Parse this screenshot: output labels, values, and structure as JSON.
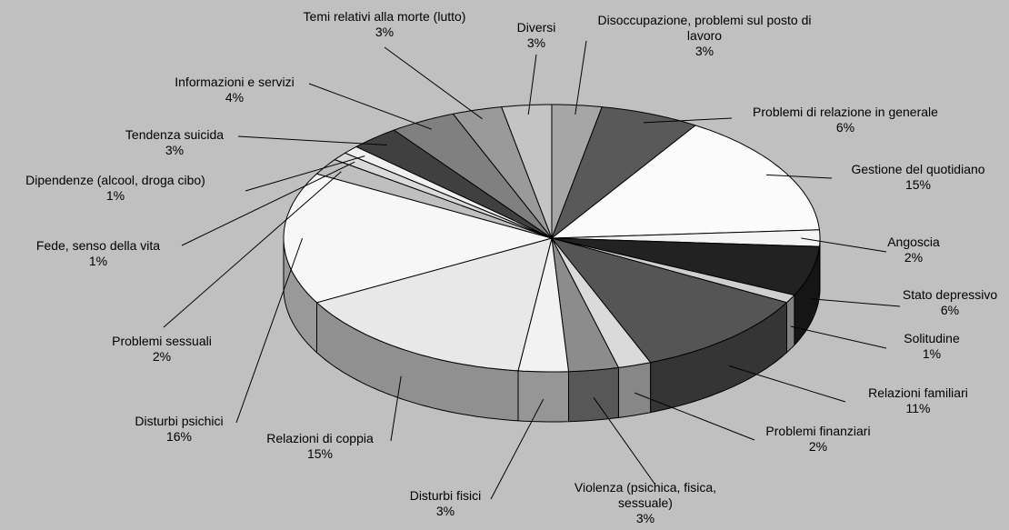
{
  "chart_data": {
    "type": "pie",
    "categories": [
      "Disoccupazione, problemi sul posto di lavoro",
      "Problemi di relazione in generale",
      "Gestione del quotidiano",
      "Angoscia",
      "Stato depressivo",
      "Solitudine",
      "Relazioni familiari",
      "Problemi finanziari",
      "Violenza (psichica, fisica, sessuale)",
      "Disturbi fisici",
      "Relazioni di coppia",
      "Disturbi psichici",
      "Problemi sessuali",
      "Fede, senso della vita",
      "Dipendenze (alcool, droga cibo)",
      "Tendenza suicida",
      "Informazioni e servizi",
      "Temi relativi alla morte (lutto)",
      "Diversi"
    ],
    "values": [
      3,
      6,
      15,
      2,
      6,
      1,
      11,
      2,
      3,
      3,
      15,
      16,
      2,
      1,
      1,
      3,
      4,
      3,
      3
    ],
    "value_labels": [
      "3%",
      "6%",
      "15%",
      "2%",
      "6%",
      "1%",
      "11%",
      "2%",
      "3%",
      "3%",
      "15%",
      "16%",
      "2%",
      "1%",
      "1%",
      "3%",
      "4%",
      "3%",
      "3%"
    ],
    "colors": [
      "#a6a6a6",
      "#595959",
      "#fbfbfb",
      "#f4f4f4",
      "#222222",
      "#cfcfcf",
      "#555555",
      "#dadada",
      "#8c8c8c",
      "#f2f2f2",
      "#e8e8e8",
      "#f7f7f7",
      "#bfbfbf",
      "#d9d9d9",
      "#f0f0f0",
      "#404040",
      "#808080",
      "#9a9a9a",
      "#c4c4c4"
    ]
  }
}
